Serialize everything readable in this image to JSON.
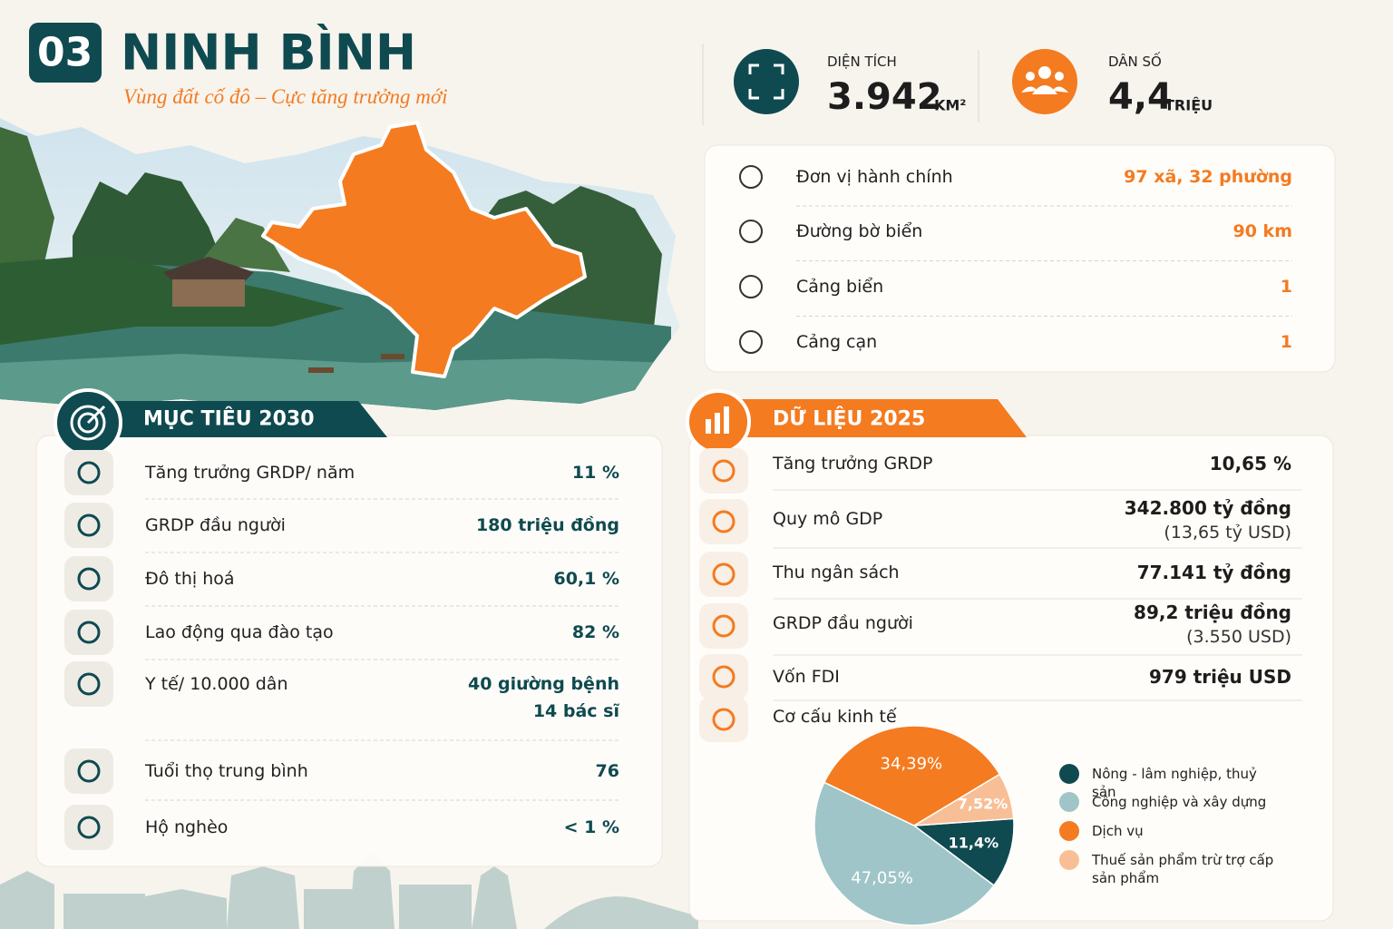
{
  "header": {
    "number": "03",
    "title": "NINH BÌNH",
    "subtitle": "Vùng đất cố đô – Cực tăng trưởng mới"
  },
  "key_stats": [
    {
      "label": "DIỆN TÍCH",
      "value": "3.942",
      "unit": "KM²"
    },
    {
      "label": "DÂN SỐ",
      "value": "4,4",
      "unit": "TRIỆU"
    }
  ],
  "admin_info": [
    {
      "label": "Đơn vị hành chính",
      "value": "97 xã, 32 phường"
    },
    {
      "label": "Đường bờ biển",
      "value": "90 km"
    },
    {
      "label": "Cảng biển",
      "value": "1"
    },
    {
      "label": "Cảng cạn",
      "value": "1"
    }
  ],
  "targets_2030": {
    "title": "MỤC TIÊU 2030",
    "rows": [
      {
        "label": "Tăng trưởng GRDP/ năm",
        "value": "11 %"
      },
      {
        "label": "GRDP đầu người",
        "value": "180 triệu đồng"
      },
      {
        "label": "Đô thị hoá",
        "value": "60,1 %"
      },
      {
        "label": "Lao động qua đào tạo",
        "value": "82 %"
      },
      {
        "label": "Y tế/ 10.000 dân",
        "value": "40 giường bệnh",
        "value_2": "14 bác sĩ"
      },
      {
        "label": "Tuổi thọ trung bình",
        "value": "76"
      },
      {
        "label": "Hộ nghèo",
        "value": "< 1 %"
      }
    ]
  },
  "data_2025": {
    "title": "DỮ LIỆU 2025",
    "rows": [
      {
        "label": "Tăng trưởng GRDP",
        "value": "10,65 %"
      },
      {
        "label": "Quy mô GDP",
        "value": "342.800 tỷ đồng",
        "note": "(13,65 tỷ USD)"
      },
      {
        "label": "Thu ngân sách",
        "value": "77.141 tỷ đồng"
      },
      {
        "label": "GRDP đầu người",
        "value": "89,2 triệu đồng",
        "note": "(3.550 USD)"
      },
      {
        "label": "Vốn FDI",
        "value": "979 triệu USD"
      }
    ]
  },
  "chart_data": {
    "type": "pie",
    "title": "Cơ cấu kinh tế",
    "categories": [
      "Nông - lâm nghiệp, thuỷ sản",
      "Công nghiệp và xây dựng",
      "Dịch vụ",
      "Thuế sản phẩm trừ trợ cấp sản phẩm"
    ],
    "values": [
      11.4,
      47.05,
      34.39,
      7.52
    ],
    "value_labels": [
      "11,4%",
      "47,05%",
      "34,39%",
      "7,52%"
    ],
    "colors": [
      "#0f4a50",
      "#9fc5c8",
      "#f47b20",
      "#f8bf96"
    ]
  }
}
